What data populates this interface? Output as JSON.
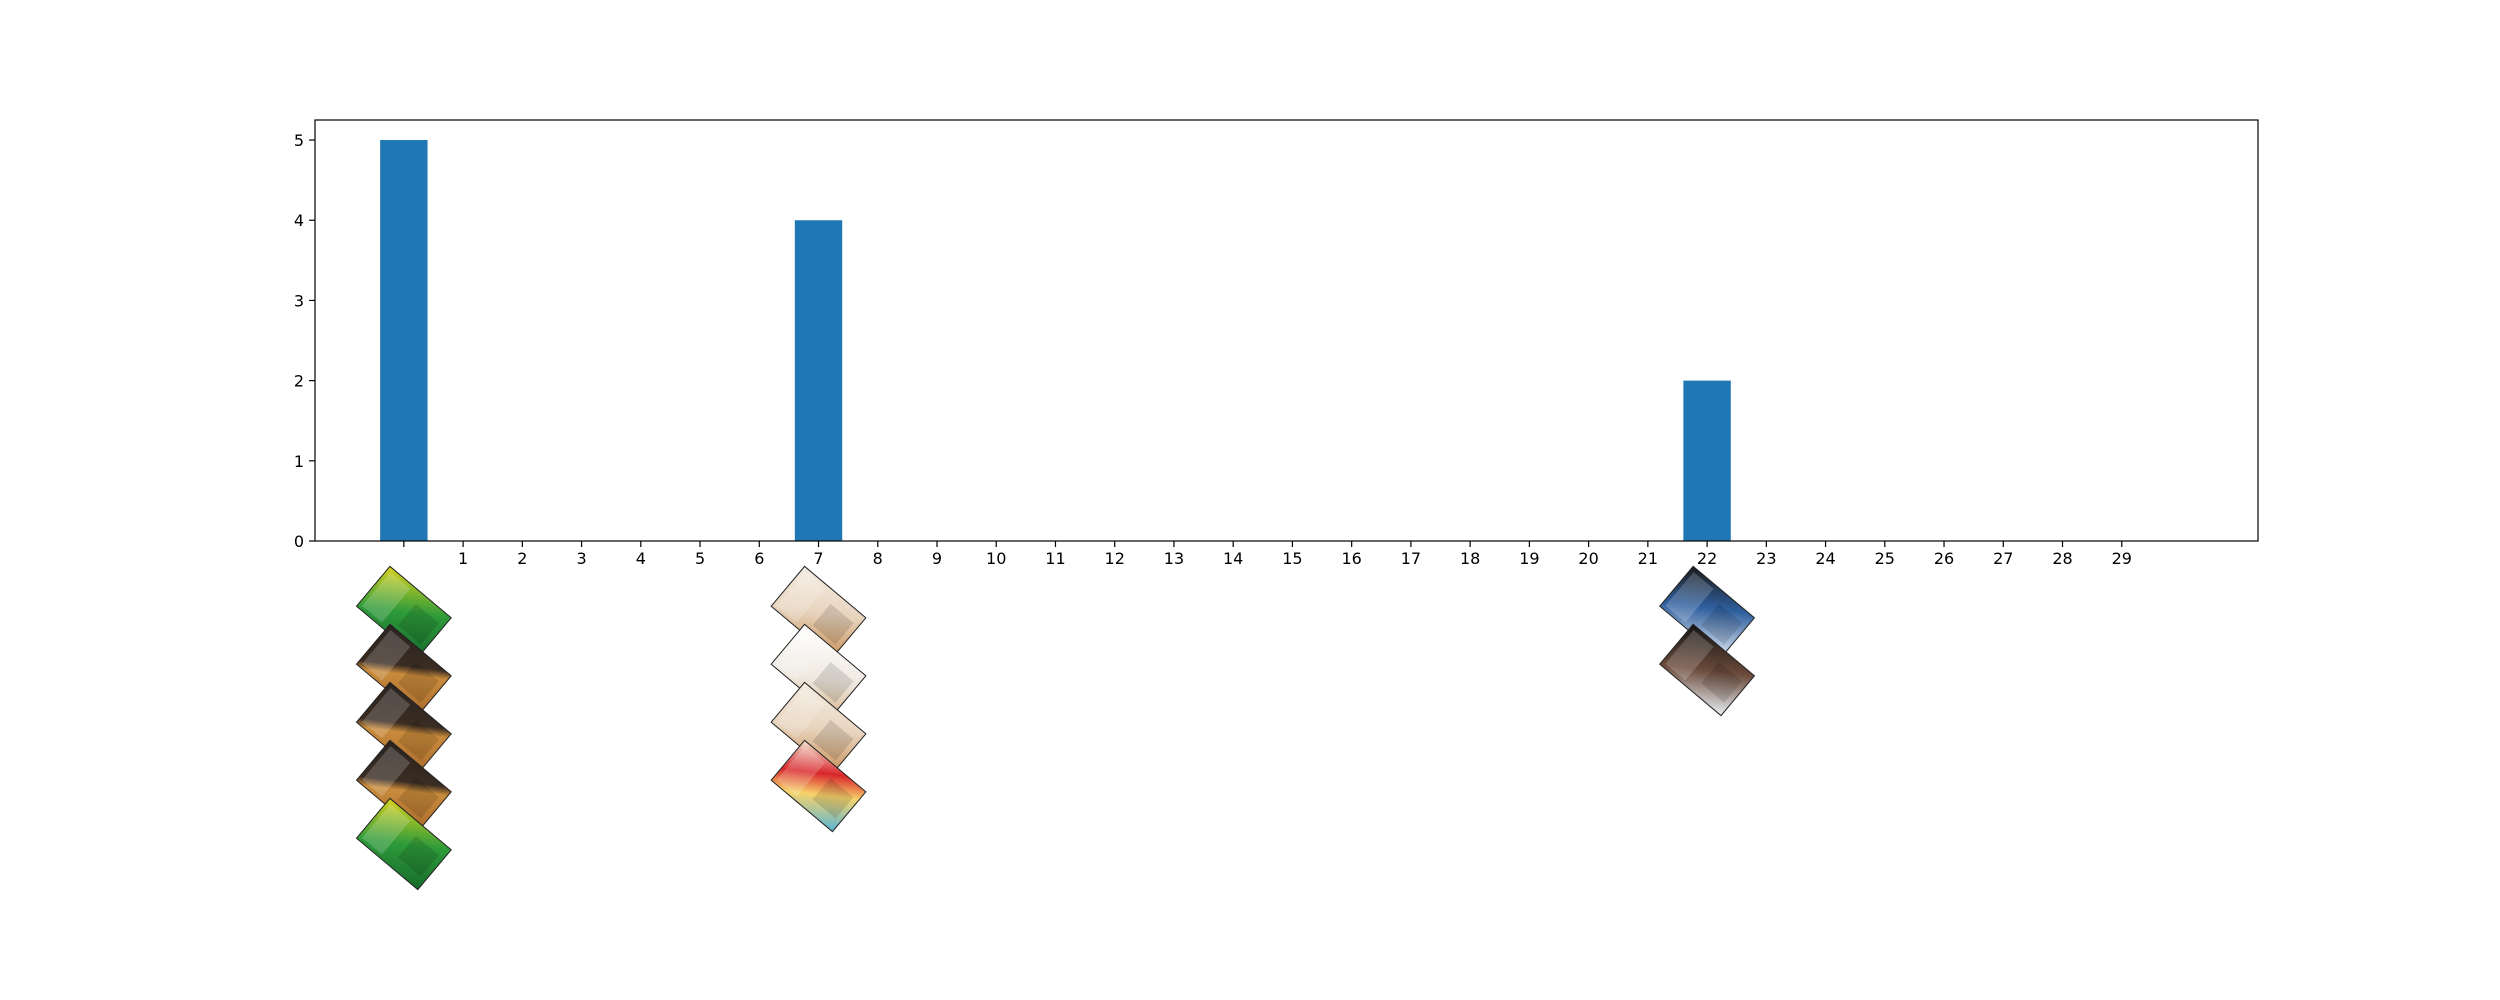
{
  "chart_data": {
    "type": "bar",
    "x": [
      0,
      1,
      2,
      3,
      4,
      5,
      6,
      7,
      8,
      9,
      10,
      11,
      12,
      13,
      14,
      15,
      16,
      17,
      18,
      19,
      20,
      21,
      22,
      23,
      24,
      25,
      26,
      27,
      28,
      29
    ],
    "values": [
      5,
      0,
      0,
      0,
      0,
      0,
      0,
      4,
      0,
      0,
      0,
      0,
      0,
      0,
      0,
      0,
      0,
      0,
      0,
      0,
      0,
      0,
      2,
      0,
      0,
      0,
      0,
      0,
      0,
      0
    ],
    "x_tick_labels": [
      "",
      "1",
      "2",
      "3",
      "4",
      "5",
      "6",
      "7",
      "8",
      "9",
      "10",
      "11",
      "12",
      "13",
      "14",
      "15",
      "16",
      "17",
      "18",
      "19",
      "20",
      "21",
      "22",
      "23",
      "24",
      "25",
      "26",
      "27",
      "28",
      "29"
    ],
    "y_ticks": [
      0,
      1,
      2,
      3,
      4,
      5
    ],
    "y_tick_labels": [
      "0",
      "1",
      "2",
      "3",
      "4",
      "5"
    ],
    "xlim": [
      -1.5,
      31.3
    ],
    "ylim": [
      0,
      5.25
    ],
    "title": "",
    "xlabel": "",
    "ylabel": "",
    "grid": false,
    "bar_color": "#1f77b4",
    "product_images": [
      {
        "x": 0,
        "items": [
          "green-granola-bar-box",
          "dark-brown-granola-bar-box",
          "dark-brown-granola-bar-box",
          "dark-brown-granola-bar-box",
          "green-granola-bar-box"
        ]
      },
      {
        "x": 7,
        "items": [
          "cream-oatmeal-box",
          "white-cereal-box",
          "cream-oatmeal-box",
          "red-white-cereal-box"
        ]
      },
      {
        "x": 22,
        "items": [
          "dark-blue-cereal-box",
          "dark-cereal-box"
        ]
      }
    ]
  }
}
